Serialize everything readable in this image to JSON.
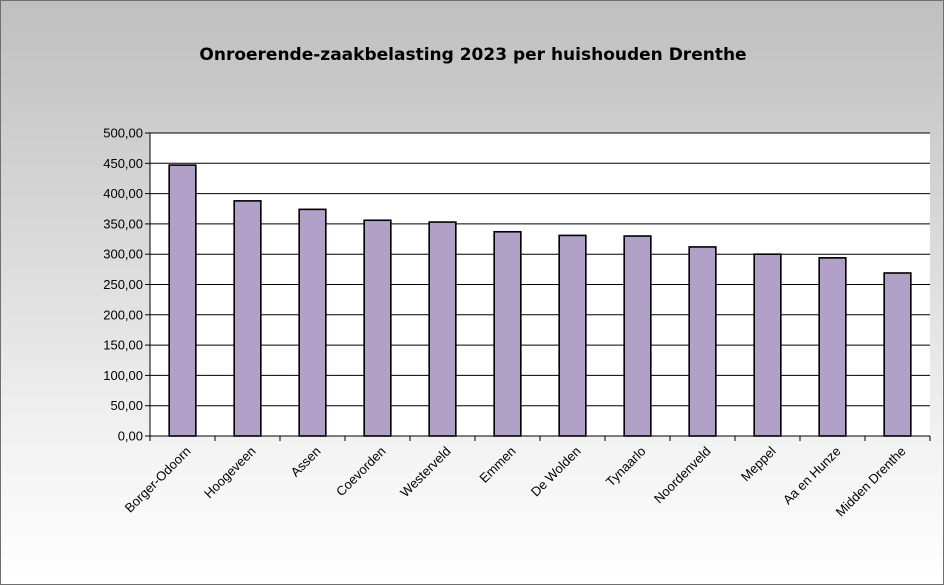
{
  "chart_data": {
    "type": "bar",
    "title": "Onroerende-zaakbelasting 2023 per huishouden Drenthe",
    "categories": [
      "Borger-Odoorn",
      "Hoogeveen",
      "Assen",
      "Coevorden",
      "Westerveld",
      "Emmen",
      "De Wolden",
      "Tynaarlo",
      "Noordenveld",
      "Meppel",
      "Aa en Hunze",
      "Midden Drenthe"
    ],
    "values": [
      447,
      388,
      374,
      356,
      353,
      337,
      331,
      330,
      312,
      300,
      294,
      269
    ],
    "ylim": [
      0,
      500
    ],
    "yticks": [
      "0,00",
      "50,00",
      "100,00",
      "150,00",
      "200,00",
      "250,00",
      "300,00",
      "350,00",
      "400,00",
      "450,00",
      "500,00"
    ],
    "grid": true,
    "colors": {
      "bar": "#b1a0c7",
      "bar_stroke": "#000000",
      "plot_bg": "#ffffff",
      "grid": "#000000"
    }
  }
}
